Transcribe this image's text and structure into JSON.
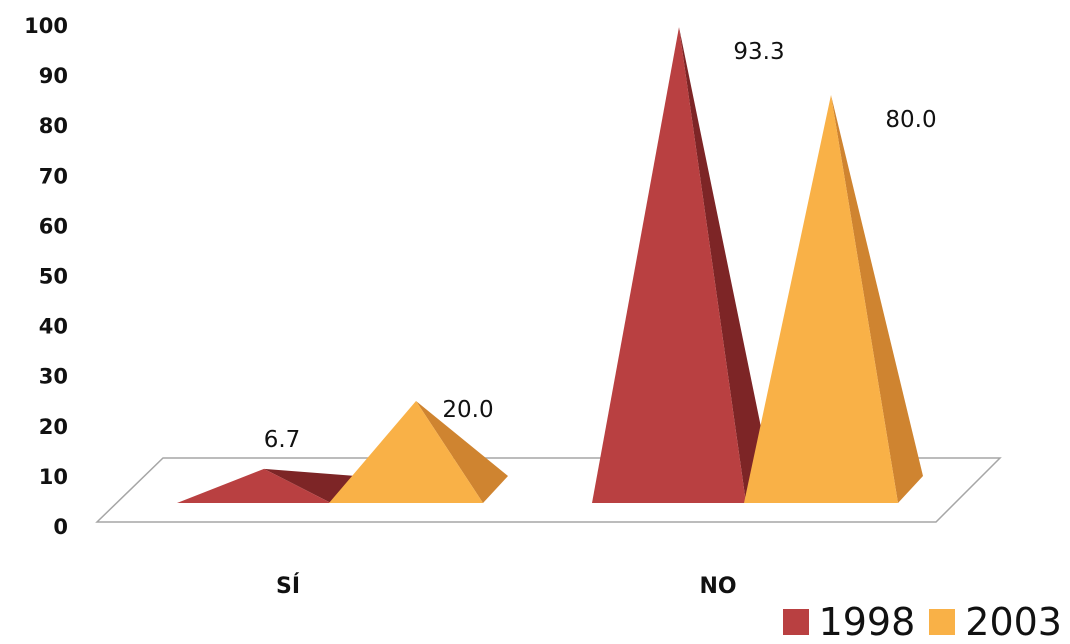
{
  "chart_data": {
    "type": "bar",
    "subtype": "3d-pyramid",
    "categories": [
      "SÍ",
      "NO"
    ],
    "series": [
      {
        "name": "1998",
        "values": [
          6.7,
          93.3
        ],
        "color": "#b94041",
        "dark": "#7d2526",
        "labels": [
          "6.7",
          "93.3"
        ]
      },
      {
        "name": "2003",
        "values": [
          20.0,
          80.0
        ],
        "color": "#f9b147",
        "dark": "#cf8430",
        "labels": [
          "20.0",
          "80.0"
        ]
      }
    ],
    "yticks": [
      "0",
      "10",
      "20",
      "30",
      "40",
      "50",
      "60",
      "70",
      "80",
      "90",
      "100"
    ],
    "ylim": [
      0,
      100
    ],
    "grid": false,
    "legend_position": "bottom-right"
  }
}
